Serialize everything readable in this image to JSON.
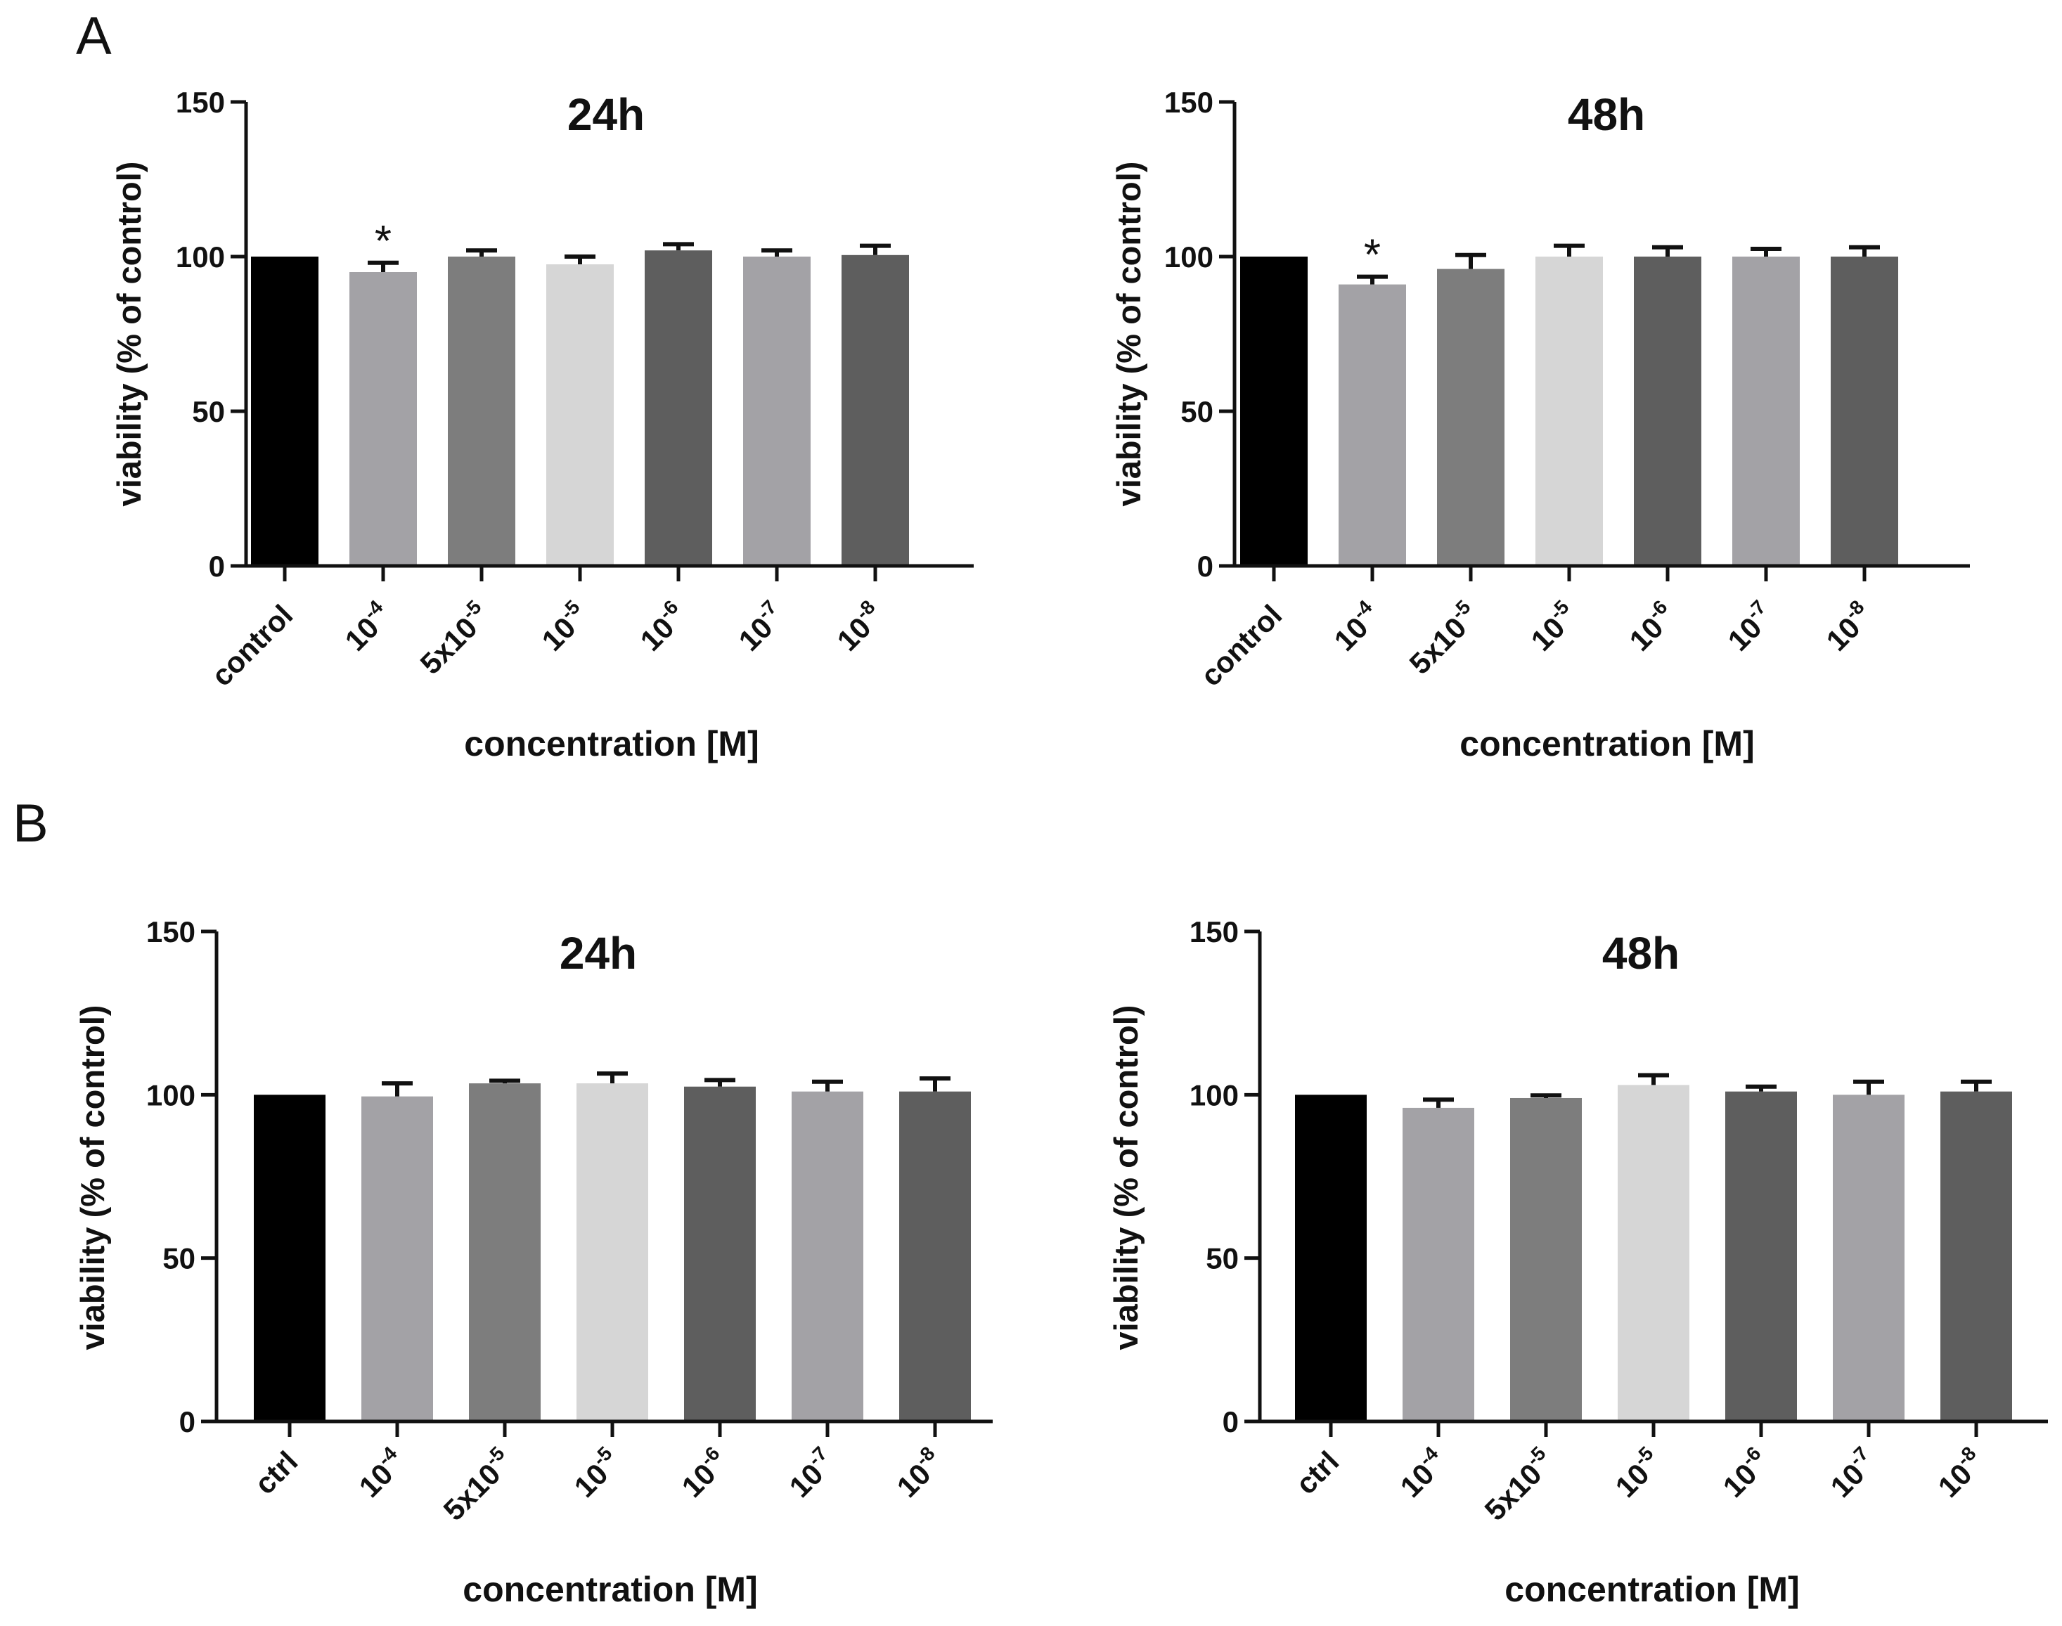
{
  "panels": {
    "A": {
      "label": "A"
    },
    "B": {
      "label": "B"
    }
  },
  "colors": {
    "control": "#000000",
    "c1e4": "#a3a2a6",
    "c5e5": "#7d7d7d",
    "c1e5": "#d6d6d6",
    "c1e6": "#5e5e5e",
    "c1e7": "#a3a2a6",
    "c1e8": "#5e5e5e",
    "axis": "#111111"
  },
  "chart_data": [
    {
      "id": "A-24h",
      "panel": "A",
      "type": "bar",
      "title": "24h",
      "xlabel": "concentration [M]",
      "ylabel": "viability (% of control)",
      "ylim": [
        0,
        150
      ],
      "yticks": [
        "0",
        "50",
        "100",
        "150"
      ],
      "categories": [
        {
          "base": "control",
          "exp": ""
        },
        {
          "base": "10",
          "exp": "-4"
        },
        {
          "base": "5x10",
          "exp": "-5"
        },
        {
          "base": "10",
          "exp": "-5"
        },
        {
          "base": "10",
          "exp": "-6"
        },
        {
          "base": "10",
          "exp": "-7"
        },
        {
          "base": "10",
          "exp": "-8"
        }
      ],
      "values": [
        100,
        95,
        100,
        97.5,
        102,
        100,
        100.5
      ],
      "errors": [
        0,
        3,
        2,
        2.5,
        2,
        2,
        3
      ],
      "annotations": [
        "",
        "*",
        "",
        "",
        "",
        "",
        ""
      ]
    },
    {
      "id": "A-48h",
      "panel": "A",
      "type": "bar",
      "title": "48h",
      "xlabel": "concentration [M]",
      "ylabel": "viability (% of control)",
      "ylim": [
        0,
        150
      ],
      "yticks": [
        "0",
        "50",
        "100",
        "150"
      ],
      "categories": [
        {
          "base": "control",
          "exp": ""
        },
        {
          "base": "10",
          "exp": "-4"
        },
        {
          "base": "5x10",
          "exp": "-5"
        },
        {
          "base": "10",
          "exp": "-5"
        },
        {
          "base": "10",
          "exp": "-6"
        },
        {
          "base": "10",
          "exp": "-7"
        },
        {
          "base": "10",
          "exp": "-8"
        }
      ],
      "values": [
        100,
        91,
        96,
        100,
        100,
        100,
        100
      ],
      "errors": [
        0,
        2.5,
        4.5,
        3.5,
        3,
        2.5,
        3
      ],
      "annotations": [
        "",
        "*",
        "",
        "",
        "",
        "",
        ""
      ]
    },
    {
      "id": "B-24h",
      "panel": "B",
      "type": "bar",
      "title": "24h",
      "xlabel": "concentration [M]",
      "ylabel": "viability (% of control)",
      "ylim": [
        0,
        150
      ],
      "yticks": [
        "0",
        "50",
        "100",
        "150"
      ],
      "categories": [
        {
          "base": "ctrl",
          "exp": ""
        },
        {
          "base": "10",
          "exp": "-4"
        },
        {
          "base": "5x10",
          "exp": "-5"
        },
        {
          "base": "10",
          "exp": "-5"
        },
        {
          "base": "10",
          "exp": "-6"
        },
        {
          "base": "10",
          "exp": "-7"
        },
        {
          "base": "10",
          "exp": "-8"
        }
      ],
      "values": [
        100,
        99.5,
        103.5,
        103.5,
        102.5,
        101,
        101
      ],
      "errors": [
        0,
        4,
        0.8,
        3,
        2,
        3,
        4
      ],
      "annotations": [
        "",
        "",
        "",
        "",
        "",
        "",
        ""
      ]
    },
    {
      "id": "B-48h",
      "panel": "B",
      "type": "bar",
      "title": "48h",
      "xlabel": "concentration [M]",
      "ylabel": "viability (% of control)",
      "ylim": [
        0,
        150
      ],
      "yticks": [
        "0",
        "50",
        "100",
        "150"
      ],
      "categories": [
        {
          "base": "ctrl",
          "exp": ""
        },
        {
          "base": "10",
          "exp": "-4"
        },
        {
          "base": "5x10",
          "exp": "-5"
        },
        {
          "base": "10",
          "exp": "-5"
        },
        {
          "base": "10",
          "exp": "-6"
        },
        {
          "base": "10",
          "exp": "-7"
        },
        {
          "base": "10",
          "exp": "-8"
        }
      ],
      "values": [
        100,
        96,
        99,
        103,
        101,
        100,
        101
      ],
      "errors": [
        0,
        2.5,
        0.8,
        3,
        1.5,
        4,
        3
      ],
      "annotations": [
        "",
        "",
        "",
        "",
        "",
        "",
        ""
      ]
    }
  ]
}
